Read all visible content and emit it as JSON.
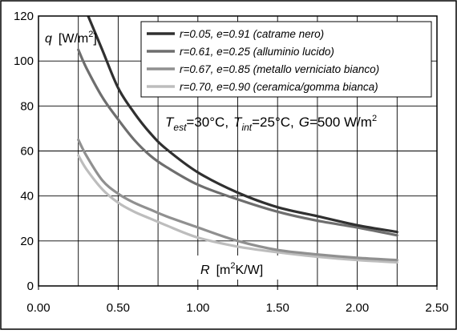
{
  "chart_data": {
    "type": "line",
    "xlabel": "R [m²K/W]",
    "ylabel": "q [W/m²]",
    "xlim": [
      0,
      2.5
    ],
    "ylim": [
      0,
      120
    ],
    "xticks": [
      0,
      0.5,
      1,
      1.5,
      2,
      2.5
    ],
    "yticks": [
      0,
      20,
      40,
      60,
      80,
      100,
      120
    ],
    "xtick_labels": [
      "0.00",
      "0.50",
      "1.00",
      "1.50",
      "2.00",
      "2.50"
    ],
    "ytick_labels": [
      "0",
      "20",
      "40",
      "60",
      "80",
      "100",
      "120"
    ],
    "grid": true,
    "legend_position": "top-right",
    "conditions": "Test=30°C, Tint=25°C, G=500 W/m²",
    "series": [
      {
        "name": "r=0.05, e=0.91 (catrame nero)",
        "color": "#303030",
        "x": [
          0.3,
          0.4,
          0.5,
          0.6,
          0.7,
          0.8,
          1.0,
          1.25,
          1.5,
          1.75,
          2.0,
          2.25
        ],
        "y": [
          122,
          105,
          88,
          77,
          68,
          61,
          50.5,
          41.5,
          35,
          31,
          27,
          24
        ]
      },
      {
        "name": "r=0.61, e=0.25 (alluminio lucido)",
        "color": "#6e6e6e",
        "x": [
          0.25,
          0.3,
          0.4,
          0.5,
          0.6,
          0.7,
          0.8,
          1.0,
          1.25,
          1.5,
          1.75,
          2.0,
          2.25
        ],
        "y": [
          105,
          97,
          84,
          74,
          65,
          58,
          53,
          45,
          38.5,
          33,
          29,
          26,
          22.5
        ]
      },
      {
        "name": "r=0.67, e=0.85 (metallo verniciato bianco)",
        "color": "#909090",
        "x": [
          0.25,
          0.3,
          0.4,
          0.5,
          0.6,
          0.7,
          0.8,
          1.0,
          1.25,
          1.5,
          1.75,
          2.0,
          2.25
        ],
        "y": [
          65,
          58,
          47,
          41,
          37,
          34,
          31,
          26,
          20,
          16,
          14,
          12.5,
          11.5
        ]
      },
      {
        "name": "r=0.70, e=0.90 (ceramica/gomma bianca)",
        "color": "#bdbdbd",
        "x": [
          0.25,
          0.3,
          0.4,
          0.5,
          0.6,
          0.7,
          0.8,
          1.0,
          1.25,
          1.5,
          1.75,
          2.0,
          2.25
        ],
        "y": [
          58,
          52,
          43,
          37,
          33,
          30,
          27,
          21.5,
          17.5,
          15,
          13,
          11.5,
          10.5
        ]
      }
    ]
  },
  "labels": {
    "q_sym": "q",
    "q_unit_a": "[W/m",
    "q_unit_sup": "2",
    "q_unit_b": "]",
    "R_sym": "R",
    "R_unit_a": "[m",
    "R_unit_sup": "2",
    "R_unit_b": "K/W]",
    "cond_T": "T",
    "cond_est": "est",
    "cond_a": "=30°C,",
    "cond_int": "int",
    "cond_b": "=25°C,",
    "cond_G": "G",
    "cond_c": "=500 W/m",
    "cond_sup": "2"
  },
  "legend": [
    {
      "r": "0.05",
      "e": "0.91",
      "desc": "(catrame nero)"
    },
    {
      "r": "0.61",
      "e": "0.25",
      "desc": "(alluminio lucido)"
    },
    {
      "r": "0.67",
      "e": "0.85",
      "desc": "(metallo verniciato bianco)"
    },
    {
      "r": "0.70",
      "e": "0.90",
      "desc": "(ceramica/gomma bianca)"
    }
  ]
}
